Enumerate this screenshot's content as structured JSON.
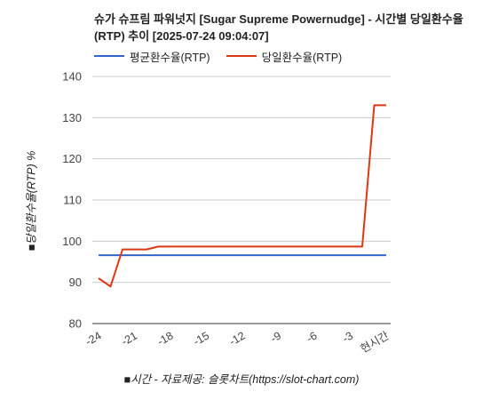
{
  "chart_data": {
    "type": "line",
    "title": "슈가 슈프림 파워넛지 [Sugar Supreme Powernudge] - 시간별 당일환수율(RTP) 추이 [2025-07-24 09:04:07]",
    "ylabel": "■당일환수율(RTP) %",
    "xlabel": "■시간 - 자료제공: 슬롯차트(https://slot-chart.com)",
    "ylim": [
      80,
      140
    ],
    "yticks": [
      "80",
      "90",
      "100",
      "110",
      "120",
      "130",
      "140"
    ],
    "xlim": [
      -24,
      0
    ],
    "xticks": [
      {
        "value": -24,
        "label": "-24"
      },
      {
        "value": -21,
        "label": "-21"
      },
      {
        "value": -18,
        "label": "-18"
      },
      {
        "value": -15,
        "label": "-15"
      },
      {
        "value": -12,
        "label": "-12"
      },
      {
        "value": -9,
        "label": "-9"
      },
      {
        "value": -6,
        "label": "-6"
      },
      {
        "value": -3,
        "label": "-3"
      },
      {
        "value": 0,
        "label": "현시간"
      }
    ],
    "grid": "horizontal",
    "legend_position": "top-left",
    "series": [
      {
        "name": "평균환수율(RTP)",
        "color": "#3366cc",
        "x": [
          -24,
          0
        ],
        "values": [
          96.6,
          96.6
        ]
      },
      {
        "name": "당일환수율(RTP)",
        "color": "#dc3912",
        "x": [
          -24,
          -23,
          -22,
          -21,
          -20,
          -19,
          -18,
          -17,
          -16,
          -15,
          -14,
          -13,
          -12,
          -11,
          -10,
          -9,
          -8,
          -7,
          -6,
          -5,
          -4,
          -3,
          -2,
          -1,
          0
        ],
        "values": [
          91,
          89,
          98,
          98,
          98,
          98.7,
          98.7,
          98.7,
          98.7,
          98.7,
          98.7,
          98.7,
          98.7,
          98.7,
          98.7,
          98.7,
          98.7,
          98.7,
          98.7,
          98.7,
          98.7,
          98.7,
          98.7,
          133,
          133
        ]
      }
    ]
  }
}
